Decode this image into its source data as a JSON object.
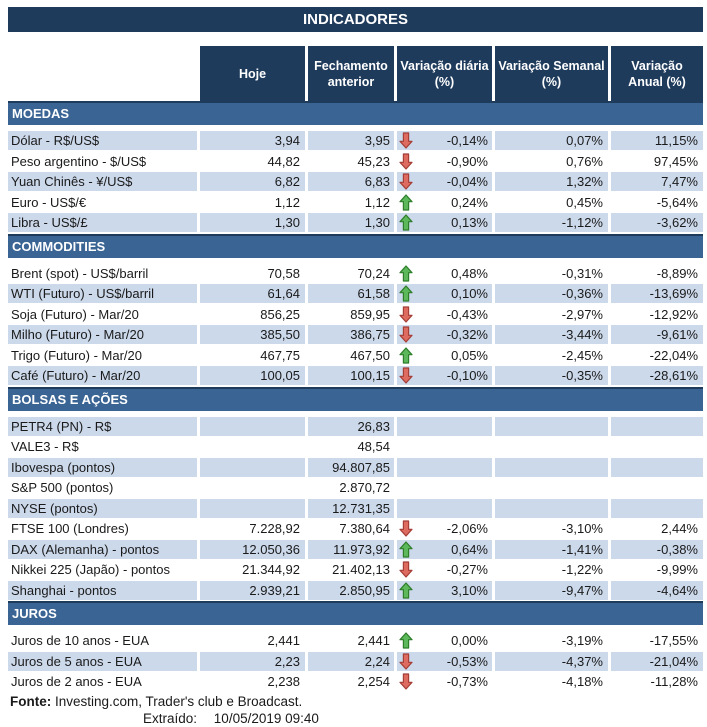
{
  "title": "INDICADORES",
  "colors": {
    "navy": "#1F3B5C",
    "band_blue": "#3A6494",
    "row_blue": "#CCD9EB",
    "text": "#1A1A1A",
    "arrow_up_fill": "#5CB85A",
    "arrow_up_stroke": "#2E7D2B",
    "arrow_down_fill": "#DD6B5F",
    "arrow_down_stroke": "#A43E37"
  },
  "header": {
    "columns": [
      {
        "line1": "Hoje",
        "line2": ""
      },
      {
        "line1": "Fechamento",
        "line2": "anterior"
      },
      {
        "line1": "Variação diária",
        "line2": "(%)"
      },
      {
        "line1": "Variação Semanal",
        "line2": "(%)"
      },
      {
        "line1": "Variação",
        "line2": "Anual (%)"
      }
    ]
  },
  "sections": [
    {
      "id": "moedas",
      "name": "MOEDAS",
      "rows": [
        {
          "label": "Dólar - R$/US$",
          "hoje": "3,94",
          "fechamento": "3,95",
          "arrow": "down",
          "diaria": "-0,14%",
          "semanal": "0,07%",
          "anual": "11,15%"
        },
        {
          "label": "Peso argentino - $/US$",
          "hoje": "44,82",
          "fechamento": "45,23",
          "arrow": "down",
          "diaria": "-0,90%",
          "semanal": "0,76%",
          "anual": "97,45%"
        },
        {
          "label": "Yuan Chinês - ¥/US$",
          "hoje": "6,82",
          "fechamento": "6,83",
          "arrow": "down",
          "diaria": "-0,04%",
          "semanal": "1,32%",
          "anual": "7,47%"
        },
        {
          "label": "Euro - US$/€",
          "hoje": "1,12",
          "fechamento": "1,12",
          "arrow": "up",
          "diaria": "0,24%",
          "semanal": "0,45%",
          "anual": "-5,64%"
        },
        {
          "label": "Libra - US$/£",
          "hoje": "1,30",
          "fechamento": "1,30",
          "arrow": "up",
          "diaria": "0,13%",
          "semanal": "-1,12%",
          "anual": "-3,62%"
        }
      ]
    },
    {
      "id": "commodities",
      "name": "COMMODITIES",
      "rows": [
        {
          "label": "Brent (spot) - US$/barril",
          "hoje": "70,58",
          "fechamento": "70,24",
          "arrow": "up",
          "diaria": "0,48%",
          "semanal": "-0,31%",
          "anual": "-8,89%"
        },
        {
          "label": "WTI (Futuro) - US$/barril",
          "hoje": "61,64",
          "fechamento": "61,58",
          "arrow": "up",
          "diaria": "0,10%",
          "semanal": "-0,36%",
          "anual": "-13,69%"
        },
        {
          "label": "Soja (Futuro) - Mar/20",
          "hoje": "856,25",
          "fechamento": "859,95",
          "arrow": "down",
          "diaria": "-0,43%",
          "semanal": "-2,97%",
          "anual": "-12,92%"
        },
        {
          "label": "Milho (Futuro) - Mar/20",
          "hoje": "385,50",
          "fechamento": "386,75",
          "arrow": "down",
          "diaria": "-0,32%",
          "semanal": "-3,44%",
          "anual": "-9,61%"
        },
        {
          "label": "Trigo (Futuro) - Mar/20",
          "hoje": "467,75",
          "fechamento": "467,50",
          "arrow": "up",
          "diaria": "0,05%",
          "semanal": "-2,45%",
          "anual": "-22,04%"
        },
        {
          "label": "Café (Futuro) - Mar/20",
          "hoje": "100,05",
          "fechamento": "100,15",
          "arrow": "down",
          "diaria": "-0,10%",
          "semanal": "-0,35%",
          "anual": "-28,61%"
        }
      ]
    },
    {
      "id": "bolsas-e-acoes",
      "name": "BOLSAS E AÇÕES",
      "rows": [
        {
          "label": "PETR4 (PN) - R$",
          "hoje": "",
          "fechamento": "26,83",
          "arrow": null,
          "diaria": "",
          "semanal": "",
          "anual": ""
        },
        {
          "label": "VALE3 - R$",
          "hoje": "",
          "fechamento": "48,54",
          "arrow": null,
          "diaria": "",
          "semanal": "",
          "anual": ""
        },
        {
          "label": "Ibovespa (pontos)",
          "hoje": "",
          "fechamento": "94.807,85",
          "arrow": null,
          "diaria": "",
          "semanal": "",
          "anual": ""
        },
        {
          "label": "S&P 500 (pontos)",
          "hoje": "",
          "fechamento": "2.870,72",
          "arrow": null,
          "diaria": "",
          "semanal": "",
          "anual": ""
        },
        {
          "label": "NYSE (pontos)",
          "hoje": "",
          "fechamento": "12.731,35",
          "arrow": null,
          "diaria": "",
          "semanal": "",
          "anual": ""
        },
        {
          "label": "FTSE 100 (Londres)",
          "hoje": "7.228,92",
          "fechamento": "7.380,64",
          "arrow": "down",
          "diaria": "-2,06%",
          "semanal": "-3,10%",
          "anual": "2,44%"
        },
        {
          "label": "DAX (Alemanha) - pontos",
          "hoje": "12.050,36",
          "fechamento": "11.973,92",
          "arrow": "up",
          "diaria": "0,64%",
          "semanal": "-1,41%",
          "anual": "-0,38%"
        },
        {
          "label": "Nikkei 225 (Japão) - pontos",
          "hoje": "21.344,92",
          "fechamento": "21.402,13",
          "arrow": "down",
          "diaria": "-0,27%",
          "semanal": "-1,22%",
          "anual": "-9,99%"
        },
        {
          "label": "Shanghai - pontos",
          "hoje": "2.939,21",
          "fechamento": "2.850,95",
          "arrow": "up",
          "diaria": "3,10%",
          "semanal": "-9,47%",
          "anual": "-4,64%"
        }
      ]
    },
    {
      "id": "juros",
      "name": "JUROS",
      "rows": [
        {
          "label": "Juros de 10 anos - EUA",
          "hoje": "2,441",
          "fechamento": "2,441",
          "arrow": "up",
          "diaria": "0,00%",
          "semanal": "-3,19%",
          "anual": "-17,55%"
        },
        {
          "label": "Juros de 5 anos - EUA",
          "hoje": "2,23",
          "fechamento": "2,24",
          "arrow": "down",
          "diaria": "-0,53%",
          "semanal": "-4,37%",
          "anual": "-21,04%"
        },
        {
          "label": "Juros de 2 anos - EUA",
          "hoje": "2,238",
          "fechamento": "2,254",
          "arrow": "down",
          "diaria": "-0,73%",
          "semanal": "-4,18%",
          "anual": "-11,28%"
        }
      ]
    }
  ],
  "footer": {
    "fonte_label": "Fonte:",
    "fonte_text": "Investing.com, Trader's club e Broadcast.",
    "extraido_label": "Extraído:",
    "extraido_value": "10/05/2019 09:40"
  }
}
